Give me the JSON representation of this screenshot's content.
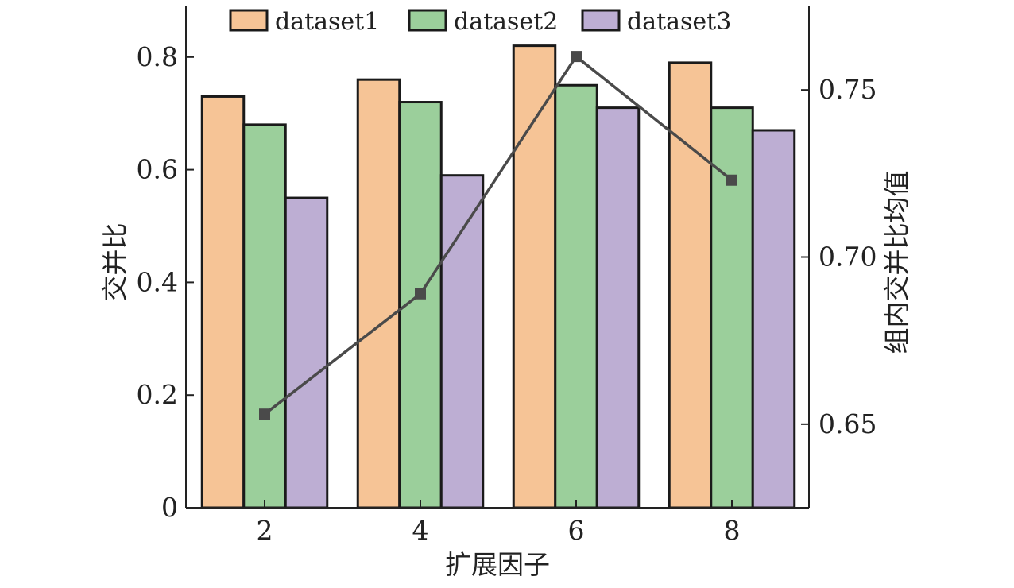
{
  "chart_data": {
    "type": "bar",
    "categories": [
      "2",
      "4",
      "6",
      "8"
    ],
    "series": [
      {
        "name": "dataset1",
        "values": [
          0.73,
          0.76,
          0.82,
          0.79
        ],
        "color": "#F6C496"
      },
      {
        "name": "dataset2",
        "values": [
          0.68,
          0.72,
          0.75,
          0.71
        ],
        "color": "#9BCF9B"
      },
      {
        "name": "dataset3",
        "values": [
          0.55,
          0.59,
          0.71,
          0.67
        ],
        "color": "#BDAED3"
      }
    ],
    "line_series": {
      "axis": "right",
      "values": [
        0.653,
        0.689,
        0.76,
        0.723
      ],
      "color": "#4a4a4a",
      "marker": "square"
    },
    "xlabel": "扩展因子",
    "ylabel": "交并比",
    "ylabel_right": "组内交并比均值",
    "ylim": [
      0,
      0.89
    ],
    "ylim_right": [
      0.625,
      0.775
    ],
    "yticks": [
      "0",
      "0.2",
      "0.4",
      "0.6",
      "0.8"
    ],
    "yticks_right": [
      "0.65",
      "0.70",
      "0.75"
    ],
    "legend_position": "top",
    "grid": false
  }
}
